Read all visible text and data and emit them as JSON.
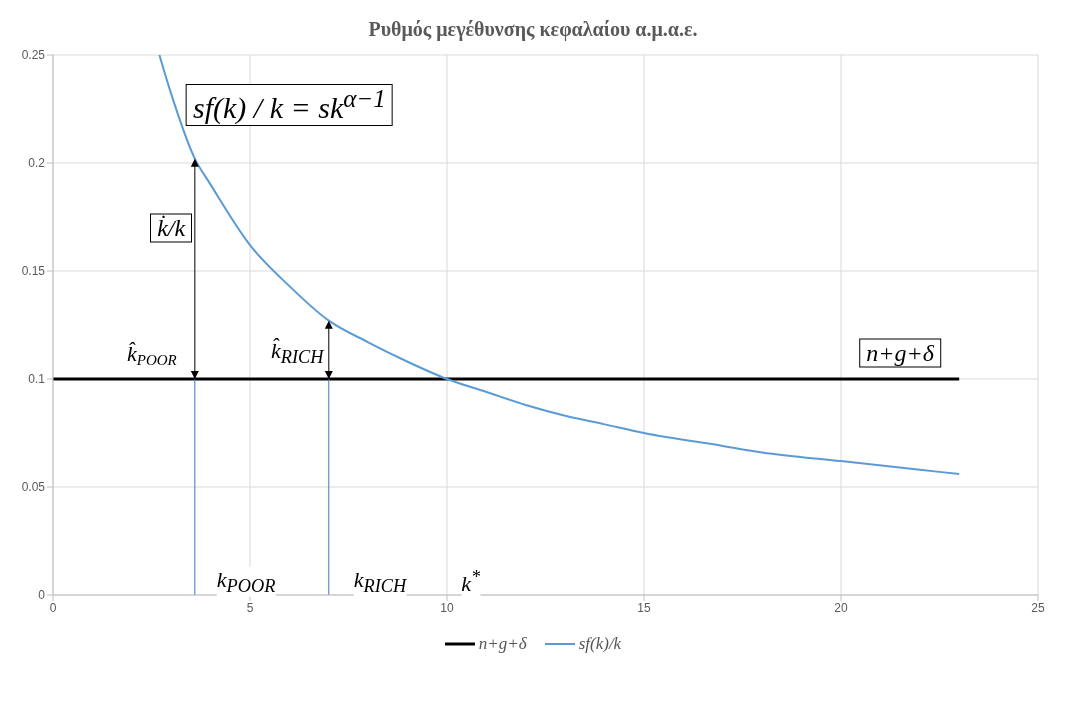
{
  "chart_data": {
    "type": "line",
    "title": "Ρυθμός μεγέθυνσης κεφαλαίου α.μ.α.ε.",
    "series": [
      {
        "name": "n+g+δ",
        "color": "#000000",
        "x": [
          0,
          23
        ],
        "values": [
          0.1,
          0.1
        ]
      },
      {
        "name": "sf(k)/k",
        "color": "#5b9bd5",
        "x": [
          2.7,
          3,
          3.6,
          4,
          5,
          6,
          7,
          8,
          9,
          10,
          11,
          12,
          13,
          14,
          15,
          17,
          18,
          20,
          22,
          23
        ],
        "values": [
          0.25,
          0.232,
          0.202,
          0.19,
          0.162,
          0.143,
          0.127,
          0.117,
          0.108,
          0.1,
          0.094,
          0.088,
          0.083,
          0.079,
          0.075,
          0.069,
          0.066,
          0.062,
          0.058,
          0.056
        ]
      },
      {
        "color": "#4472c4",
        "x": [
          3.6,
          3.6
        ],
        "values": [
          0,
          0.1
        ]
      },
      {
        "color": "#4472c4",
        "x": [
          7,
          7
        ],
        "values": [
          0,
          0.1
        ]
      }
    ],
    "xlim": [
      0,
      25
    ],
    "xticks": [
      0,
      5,
      10,
      15,
      20,
      25
    ],
    "ylim": [
      0,
      0.25
    ],
    "yticks": [
      0,
      0.05,
      0.1,
      0.15,
      0.2,
      0.25
    ],
    "grid": true,
    "legend": "bottom",
    "marker": "none",
    "line_style": "solid",
    "annotations": [
      "sf(k) / k = sk$^{α−1}$",
      "k̇/k",
      {
        "text": "k̂$_{POOR}$",
        "x": 3.6,
        "y": 0.1
      },
      "k̂$_{RICH}$",
      "n+g+δ",
      "k$_{POOR}$",
      "k$_{RICH}$",
      "k$^{*}$"
    ]
  }
}
